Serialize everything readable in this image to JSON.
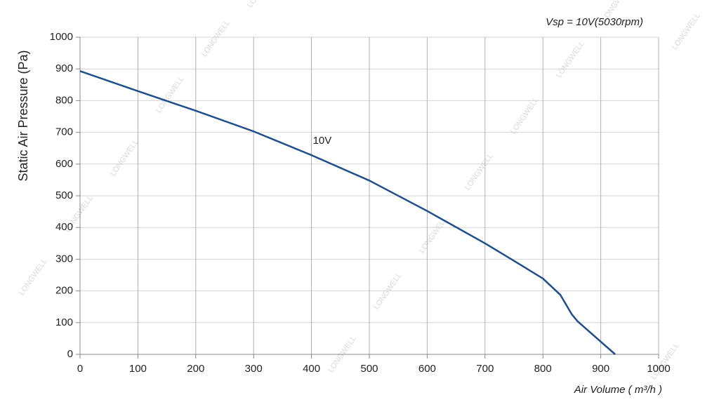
{
  "chart_data": {
    "type": "line",
    "annotation": "Vsp = 10V(5030rpm)",
    "watermark": "LONGWELL",
    "x_label": "Air Volume ( m³/h )",
    "y_label": "Static Air Pressure  (Pa)",
    "x": [
      0,
      100,
      200,
      300,
      400,
      500,
      600,
      700,
      750,
      800,
      830,
      850,
      860,
      900,
      925
    ],
    "series": [
      {
        "name": "10V",
        "color": "#1f4e8c",
        "values": [
          893,
          830,
          768,
          703,
          628,
          548,
          452,
          350,
          295,
          239,
          188,
          126,
          104,
          40,
          0
        ]
      }
    ],
    "xlim": [
      0,
      1000
    ],
    "xticks": [
      0,
      100,
      200,
      300,
      400,
      500,
      600,
      700,
      800,
      900,
      1000
    ],
    "ylim": [
      0,
      1000
    ],
    "yticks": [
      0,
      100,
      200,
      300,
      400,
      500,
      600,
      700,
      800,
      900,
      1000
    ],
    "grid": true
  }
}
